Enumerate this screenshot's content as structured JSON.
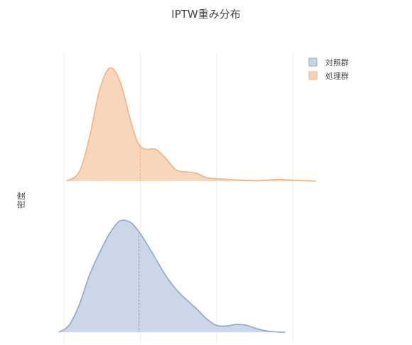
{
  "chart_data": {
    "type": "area",
    "title": "IPTW重み分布",
    "ylabel": "密度",
    "xlabel": "",
    "grid": true,
    "legend_position": "top-right",
    "legend": [
      {
        "name": "対照群",
        "color": "#8ea7cc"
      },
      {
        "name": "処理群",
        "color": "#f0b482"
      }
    ],
    "xlim": [
      0,
      5
    ],
    "x_gridlines": [
      0,
      1.5,
      3,
      4.5
    ],
    "panels": [
      {
        "name": "処理群",
        "color": "#f0b482",
        "fill": "#f8d4b7",
        "marker_x": 1.5,
        "ylim": [
          0,
          1
        ],
        "x": [
          0.05,
          0.3,
          0.5,
          0.7,
          0.9,
          1.1,
          1.3,
          1.45,
          1.6,
          1.8,
          2.0,
          2.2,
          2.4,
          2.6,
          2.8,
          3.0,
          3.2,
          3.4,
          3.6,
          3.8,
          4.0,
          4.2,
          4.4,
          4.6,
          4.8,
          4.95
        ],
        "y": [
          0.0,
          0.08,
          0.38,
          0.8,
          0.995,
          0.88,
          0.55,
          0.34,
          0.28,
          0.28,
          0.2,
          0.1,
          0.08,
          0.07,
          0.03,
          0.02,
          0.015,
          0.01,
          0.005,
          0.003,
          0.008,
          0.015,
          0.01,
          0.005,
          0.002,
          0.0
        ]
      },
      {
        "name": "対照群",
        "color": "#8ea7cc",
        "fill": "#c9d4e7",
        "marker_x": 1.475,
        "ylim": [
          0,
          1
        ],
        "x": [
          -0.1,
          0.1,
          0.3,
          0.5,
          0.7,
          0.9,
          1.1,
          1.3,
          1.45,
          1.6,
          1.8,
          2.0,
          2.2,
          2.4,
          2.6,
          2.8,
          3.0,
          3.2,
          3.4,
          3.6,
          3.8,
          4.0,
          4.2,
          4.35
        ],
        "y": [
          0.0,
          0.06,
          0.24,
          0.5,
          0.7,
          0.87,
          0.98,
          0.97,
          0.9,
          0.8,
          0.65,
          0.5,
          0.38,
          0.29,
          0.21,
          0.12,
          0.06,
          0.055,
          0.07,
          0.06,
          0.03,
          0.01,
          0.002,
          0.0
        ]
      }
    ]
  }
}
